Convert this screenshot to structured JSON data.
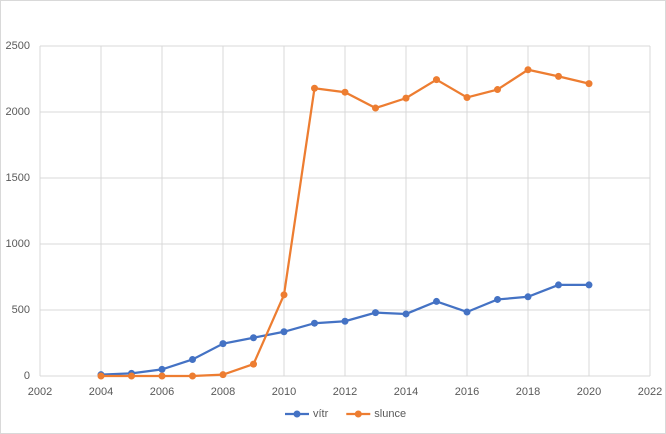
{
  "chart_data": {
    "type": "line",
    "x": [
      2004,
      2005,
      2006,
      2007,
      2008,
      2009,
      2010,
      2011,
      2012,
      2013,
      2014,
      2015,
      2016,
      2017,
      2018,
      2019,
      2020
    ],
    "series": [
      {
        "name": "vítr",
        "color": "#4472c4",
        "values": [
          10,
          20,
          50,
          125,
          245,
          290,
          335,
          400,
          415,
          480,
          470,
          565,
          485,
          580,
          600,
          690,
          690
        ]
      },
      {
        "name": "slunce",
        "color": "#ed7d31",
        "values": [
          0,
          0,
          0,
          0,
          10,
          90,
          615,
          2180,
          2150,
          2030,
          2105,
          2245,
          2110,
          2170,
          2320,
          2270,
          2215
        ]
      }
    ],
    "xlim": [
      2002,
      2022
    ],
    "xticks": [
      2002,
      2004,
      2006,
      2008,
      2010,
      2012,
      2014,
      2016,
      2018,
      2020,
      2022
    ],
    "ylim": [
      0,
      2500
    ],
    "yticks": [
      0,
      500,
      1000,
      1500,
      2000,
      2500
    ],
    "grid": true,
    "legend": "bottom"
  }
}
